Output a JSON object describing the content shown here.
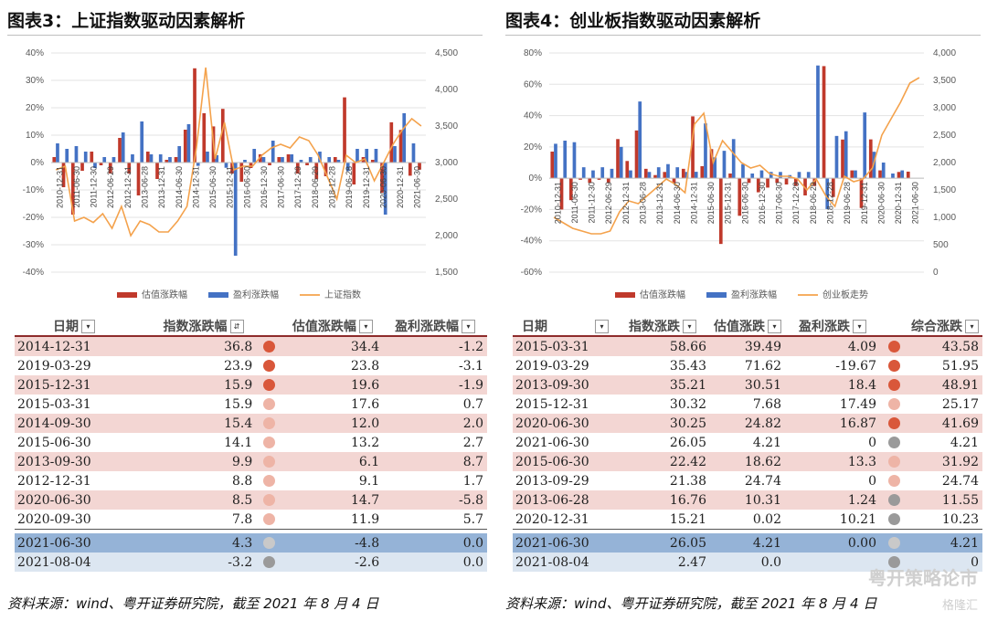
{
  "left": {
    "title": "图表3：上证指数驱动因素解析",
    "source": "资料来源：wind、粤开证券研究院，截至 2021 年 8 月 4 日",
    "table": {
      "headers": [
        "日期",
        "指数涨跌幅",
        "估值涨跌幅",
        "盈利涨跌幅"
      ],
      "rows": [
        {
          "date": "2014-12-31",
          "idx": "36.8",
          "val": "34.4",
          "earn": "-1.2",
          "dot": "#d9573a",
          "style": "r-red"
        },
        {
          "date": "2019-03-29",
          "idx": "23.9",
          "val": "23.8",
          "earn": "-3.1",
          "dot": "#d9573a",
          "style": "r-white"
        },
        {
          "date": "2015-12-31",
          "idx": "15.9",
          "val": "19.6",
          "earn": "-1.9",
          "dot": "#d9573a",
          "style": "r-red"
        },
        {
          "date": "2015-03-31",
          "idx": "15.9",
          "val": "17.6",
          "earn": "0.7",
          "dot": "#eeb4a6",
          "style": "r-white"
        },
        {
          "date": "2014-09-30",
          "idx": "15.4",
          "val": "12.0",
          "earn": "2.0",
          "dot": "#eeb4a6",
          "style": "r-red"
        },
        {
          "date": "2015-06-30",
          "idx": "14.1",
          "val": "13.2",
          "earn": "2.7",
          "dot": "#eeb4a6",
          "style": "r-white"
        },
        {
          "date": "2013-09-30",
          "idx": "9.9",
          "val": "6.1",
          "earn": "8.7",
          "dot": "#eeb4a6",
          "style": "r-red"
        },
        {
          "date": "2012-12-31",
          "idx": "8.8",
          "val": "9.1",
          "earn": "1.7",
          "dot": "#eeb4a6",
          "style": "r-white"
        },
        {
          "date": "2020-06-30",
          "idx": "8.5",
          "val": "14.7",
          "earn": "-5.8",
          "dot": "#eeb4a6",
          "style": "r-red"
        },
        {
          "date": "2020-09-30",
          "idx": "7.8",
          "val": "11.9",
          "earn": "5.7",
          "dot": "#eeb4a6",
          "style": "r-white"
        }
      ],
      "extra_rows": [
        {
          "date": "2021-06-30",
          "idx": "4.3",
          "val": "-4.8",
          "earn": "0.0",
          "dot": "#c9c9c9",
          "style": "r-blue"
        },
        {
          "date": "2021-08-04",
          "idx": "-3.2",
          "val": "-2.6",
          "earn": "0.0",
          "dot": "#9a9a9a",
          "style": "r-lblue"
        }
      ]
    }
  },
  "right": {
    "title": "图表4：创业板指数驱动因素解析",
    "source": "资料来源：wind、粤开证券研究院，截至 2021 年 8 月 4 日",
    "watermark": "粤开策略论市",
    "watermark2": "格隆汇",
    "table": {
      "headers": [
        "日期",
        "指数涨跌",
        "估值涨跌",
        "盈利涨跌",
        "综合涨跌"
      ],
      "rows": [
        {
          "date": "2015-03-31",
          "idx": "58.66",
          "val": "39.49",
          "earn": "4.09",
          "comb": "43.58",
          "dot": "#d9573a",
          "style": "r-red"
        },
        {
          "date": "2019-03-29",
          "idx": "35.43",
          "val": "71.62",
          "earn": "-19.67",
          "comb": "51.95",
          "dot": "#d9573a",
          "style": "r-white"
        },
        {
          "date": "2013-09-30",
          "idx": "35.21",
          "val": "30.51",
          "earn": "18.4",
          "comb": "48.91",
          "dot": "#d9573a",
          "style": "r-red"
        },
        {
          "date": "2015-12-31",
          "idx": "30.32",
          "val": "7.68",
          "earn": "17.49",
          "comb": "25.17",
          "dot": "#eeb4a6",
          "style": "r-white"
        },
        {
          "date": "2020-06-30",
          "idx": "30.25",
          "val": "24.82",
          "earn": "16.87",
          "comb": "41.69",
          "dot": "#d9573a",
          "style": "r-red"
        },
        {
          "date": "2021-06-30",
          "idx": "26.05",
          "val": "4.21",
          "earn": "0",
          "comb": "4.21",
          "dot": "#9a9a9a",
          "style": "r-white"
        },
        {
          "date": "2015-06-30",
          "idx": "22.42",
          "val": "18.62",
          "earn": "13.3",
          "comb": "31.92",
          "dot": "#eeb4a6",
          "style": "r-red"
        },
        {
          "date": "2013-09-29",
          "idx": "21.38",
          "val": "24.74",
          "earn": "0",
          "comb": "24.74",
          "dot": "#eeb4a6",
          "style": "r-white"
        },
        {
          "date": "2013-06-28",
          "idx": "16.76",
          "val": "10.31",
          "earn": "1.24",
          "comb": "11.55",
          "dot": "#9a9a9a",
          "style": "r-red"
        },
        {
          "date": "2020-12-31",
          "idx": "15.21",
          "val": "0.02",
          "earn": "10.21",
          "comb": "10.23",
          "dot": "#9a9a9a",
          "style": "r-white"
        }
      ],
      "extra_rows": [
        {
          "date": "2021-06-30",
          "idx": "26.05",
          "val": "4.21",
          "earn": "0.00",
          "comb": "4.21",
          "dot": "#c9c9c9",
          "style": "r-blue"
        },
        {
          "date": "2021-08-04",
          "idx": "2.47",
          "val": "0.0",
          "earn": "",
          "comb": "0",
          "dot": "#9a9a9a",
          "style": "r-lblue"
        }
      ]
    }
  },
  "chart_data": [
    {
      "type": "bar",
      "legend": [
        "估值涨跌幅",
        "盈利涨跌幅",
        "上证指数"
      ],
      "legend_position": "bottom",
      "colors": {
        "valuation": "#c0392b",
        "earnings": "#4472c4",
        "index": "#f4a24c"
      },
      "y_left": {
        "min": -0.4,
        "max": 0.4,
        "ticks": [
          "-40%",
          "-30%",
          "-20%",
          "-10%",
          "0%",
          "10%",
          "20%",
          "30%",
          "40%"
        ]
      },
      "y_right": {
        "min": 1500,
        "max": 4500,
        "ticks": [
          "1,500",
          "2,000",
          "2,500",
          "3,000",
          "3,500",
          "4,000",
          "4,500"
        ]
      },
      "x_labels": [
        "2010-12-31",
        "2011-06-30",
        "2011-12-30",
        "2012-06-29",
        "2012-12-31",
        "2013-06-28",
        "2013-12-31",
        "2014-06-30",
        "2014-12-31",
        "2015-06-30",
        "2015-12-31",
        "2016-06-30",
        "2016-12-30",
        "2017-06-30",
        "2017-12-29",
        "2018-06-29",
        "2018-12-28",
        "2019-06-28",
        "2019-12-31",
        "2020-06-30",
        "2020-12-31",
        "2021-06-30"
      ],
      "valuation": [
        0.02,
        -0.09,
        -0.19,
        -0.03,
        0.04,
        -0.01,
        -0.04,
        0.09,
        -0.04,
        -0.12,
        0.04,
        -0.06,
        0.01,
        0.02,
        0.12,
        0.344,
        0.18,
        0.132,
        0.196,
        -0.04,
        -0.07,
        -0.02,
        0.03,
        -0.01,
        0.02,
        0.03,
        -0.04,
        -0.01,
        -0.06,
        -0.05,
        0.02,
        0.238,
        -0.08,
        0.02,
        0.01,
        -0.11,
        0.147,
        0.119,
        -0.048,
        -0.026
      ],
      "earnings": [
        0.07,
        0.05,
        0.06,
        0.04,
        -0.02,
        0.02,
        0.02,
        0.11,
        0.03,
        0.15,
        0.03,
        0.03,
        0.02,
        0.06,
        0.14,
        -0.012,
        0.04,
        0.027,
        -0.019,
        -0.34,
        0.01,
        0.05,
        0.02,
        0.08,
        0.02,
        0.03,
        0.01,
        0.02,
        0.04,
        0.02,
        0.01,
        -0.031,
        0.05,
        0.05,
        0.05,
        -0.19,
        0.06,
        0.18,
        0.07,
        0.0
      ],
      "index": [
        2900,
        2950,
        2200,
        2250,
        2180,
        2300,
        2100,
        2400,
        2000,
        2200,
        2150,
        2050,
        2050,
        2200,
        2400,
        3200,
        4300,
        3050,
        3550,
        2900,
        2950,
        2950,
        3100,
        3200,
        3250,
        3200,
        3350,
        3300,
        3100,
        2800,
        2500,
        3100,
        3000,
        3050,
        2750,
        3000,
        3250,
        3450,
        3600,
        3500
      ]
    },
    {
      "type": "bar",
      "legend": [
        "估值涨跌幅",
        "盈利涨跌幅",
        "创业板走势"
      ],
      "legend_position": "bottom",
      "colors": {
        "valuation": "#c0392b",
        "earnings": "#4472c4",
        "index": "#f4a24c"
      },
      "y_left": {
        "min": -0.6,
        "max": 0.8,
        "ticks": [
          "-60%",
          "-40%",
          "-20%",
          "0%",
          "20%",
          "40%",
          "60%",
          "80%"
        ]
      },
      "y_right": {
        "min": 0,
        "max": 4000,
        "ticks": [
          "0",
          "500",
          "1,000",
          "1,500",
          "2,000",
          "2,500",
          "3,000",
          "3,500",
          "4,000"
        ]
      },
      "x_labels": [
        "2010-12-31",
        "2011-06-30",
        "2011-12-30",
        "2012-06-29",
        "2012-12-31",
        "2013-06-28",
        "2013-12-31",
        "2014-06-30",
        "2014-12-31",
        "2015-06-30",
        "2015-12-31",
        "2016-06-30",
        "2016-12-30",
        "2017-06-30",
        "2017-12-29",
        "2018-06-29",
        "2018-12-28",
        "2019-06-28",
        "2019-12-31",
        "2020-06-30",
        "2020-12-31",
        "2021-06-30"
      ],
      "valuation": [
        0.17,
        -0.2,
        -0.14,
        -0.01,
        -0.03,
        -0.01,
        -0.03,
        0.25,
        0.11,
        0.305,
        0.06,
        0.02,
        0.04,
        -0.03,
        0.06,
        0.395,
        0.077,
        0.186,
        -0.42,
        0.03,
        -0.24,
        -0.03,
        -0.09,
        -0.06,
        -0.03,
        -0.04,
        -0.05,
        -0.11,
        -0.05,
        0.716,
        -0.12,
        0.247,
        0.05,
        -0.19,
        0.248,
        0.05,
        0.0,
        0.04,
        0.042,
        0.0
      ],
      "earnings": [
        0.22,
        0.24,
        0.23,
        0.07,
        0.05,
        0.07,
        0.06,
        0.2,
        0.05,
        0.49,
        0.04,
        0.07,
        0.09,
        0.07,
        0.04,
        0.041,
        0.35,
        0.133,
        0.175,
        0.25,
        0.09,
        0.03,
        0.05,
        0.04,
        0.04,
        0.02,
        0.04,
        0.04,
        0.72,
        -0.197,
        0.27,
        0.3,
        0.05,
        0.42,
        0.169,
        0.1,
        0.03,
        0.05,
        0.0,
        0.0
      ],
      "index": [
        1000,
        900,
        800,
        750,
        700,
        700,
        750,
        1100,
        1300,
        1250,
        1400,
        1550,
        1700,
        1600,
        1450,
        2700,
        2900,
        2000,
        2400,
        2200,
        2000,
        1900,
        1950,
        1800,
        1750,
        1750,
        1700,
        1500,
        1700,
        1400,
        1200,
        1750,
        1650,
        1700,
        1900,
        2500,
        2800,
        3100,
        3450,
        3550
      ]
    }
  ]
}
